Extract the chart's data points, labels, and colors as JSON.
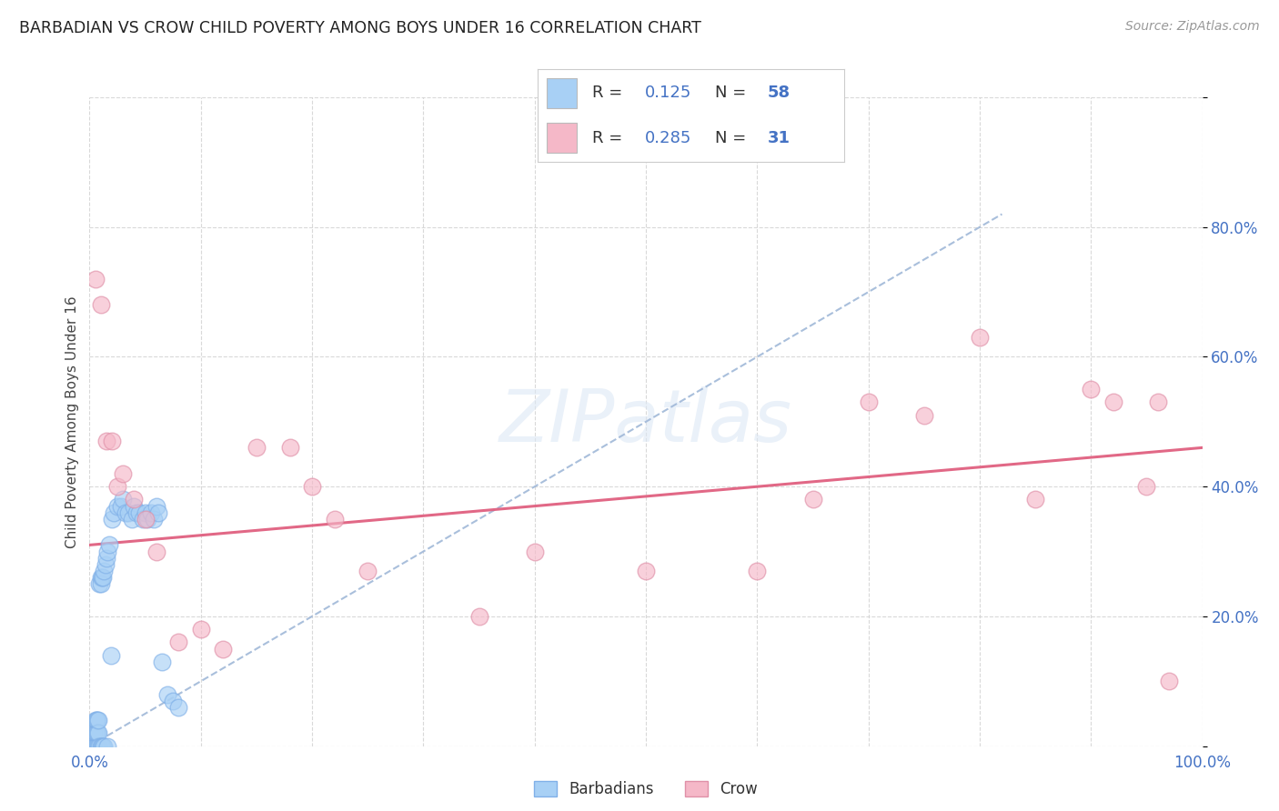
{
  "title": "BARBADIAN VS CROW CHILD POVERTY AMONG BOYS UNDER 16 CORRELATION CHART",
  "source": "Source: ZipAtlas.com",
  "ylabel": "Child Poverty Among Boys Under 16",
  "xlim": [
    0.0,
    1.0
  ],
  "ylim": [
    0.0,
    1.0
  ],
  "x_ticks": [
    0.0,
    0.1,
    0.2,
    0.3,
    0.4,
    0.5,
    0.6,
    0.7,
    0.8,
    0.9,
    1.0
  ],
  "y_ticks": [
    0.0,
    0.2,
    0.4,
    0.6,
    0.8,
    1.0
  ],
  "y_tick_labels": [
    "",
    "20.0%",
    "40.0%",
    "60.0%",
    "80.0%",
    ""
  ],
  "x_tick_labels": [
    "0.0%",
    "",
    "",
    "",
    "",
    "",
    "",
    "",
    "",
    "",
    "100.0%"
  ],
  "barbadian_color": "#a8d0f5",
  "crow_color": "#f5b8c8",
  "trendline_blue_color": "#a0b8d8",
  "trendline_pink_color": "#e06080",
  "background_color": "#ffffff",
  "grid_color": "#d0d0d0",
  "barbadian_R": 0.125,
  "barbadian_N": 58,
  "crow_R": 0.285,
  "crow_N": 31,
  "barbadian_x": [
    0.002,
    0.003,
    0.003,
    0.003,
    0.004,
    0.004,
    0.004,
    0.005,
    0.005,
    0.005,
    0.006,
    0.006,
    0.006,
    0.007,
    0.007,
    0.007,
    0.008,
    0.008,
    0.008,
    0.009,
    0.009,
    0.01,
    0.01,
    0.01,
    0.011,
    0.011,
    0.012,
    0.012,
    0.013,
    0.013,
    0.014,
    0.015,
    0.016,
    0.016,
    0.018,
    0.019,
    0.02,
    0.022,
    0.025,
    0.028,
    0.03,
    0.032,
    0.035,
    0.038,
    0.04,
    0.042,
    0.045,
    0.048,
    0.05,
    0.052,
    0.055,
    0.058,
    0.06,
    0.062,
    0.065,
    0.07,
    0.075,
    0.08
  ],
  "barbadian_y": [
    0.0,
    0.0,
    0.0,
    0.0,
    0.0,
    0.0,
    0.02,
    0.0,
    0.02,
    0.04,
    0.0,
    0.02,
    0.04,
    0.0,
    0.02,
    0.04,
    0.0,
    0.02,
    0.04,
    0.0,
    0.25,
    0.0,
    0.26,
    0.25,
    0.26,
    0.0,
    0.26,
    0.0,
    0.27,
    0.0,
    0.28,
    0.29,
    0.3,
    0.0,
    0.31,
    0.14,
    0.35,
    0.36,
    0.37,
    0.37,
    0.38,
    0.36,
    0.36,
    0.35,
    0.37,
    0.36,
    0.36,
    0.35,
    0.36,
    0.35,
    0.36,
    0.35,
    0.37,
    0.36,
    0.13,
    0.08,
    0.07,
    0.06
  ],
  "crow_x": [
    0.005,
    0.01,
    0.015,
    0.02,
    0.025,
    0.03,
    0.04,
    0.05,
    0.06,
    0.08,
    0.1,
    0.12,
    0.15,
    0.18,
    0.2,
    0.22,
    0.25,
    0.35,
    0.4,
    0.5,
    0.6,
    0.65,
    0.7,
    0.75,
    0.8,
    0.85,
    0.9,
    0.92,
    0.95,
    0.96,
    0.97
  ],
  "crow_y": [
    0.72,
    0.68,
    0.47,
    0.47,
    0.4,
    0.42,
    0.38,
    0.35,
    0.3,
    0.16,
    0.18,
    0.15,
    0.46,
    0.46,
    0.4,
    0.35,
    0.27,
    0.2,
    0.3,
    0.27,
    0.27,
    0.38,
    0.53,
    0.51,
    0.63,
    0.38,
    0.55,
    0.53,
    0.4,
    0.53,
    0.1
  ],
  "blue_trendline_x": [
    0.0,
    0.82
  ],
  "blue_trendline_y": [
    0.0,
    0.82
  ],
  "pink_trendline_x": [
    0.0,
    1.0
  ],
  "pink_trendline_y": [
    0.31,
    0.46
  ]
}
